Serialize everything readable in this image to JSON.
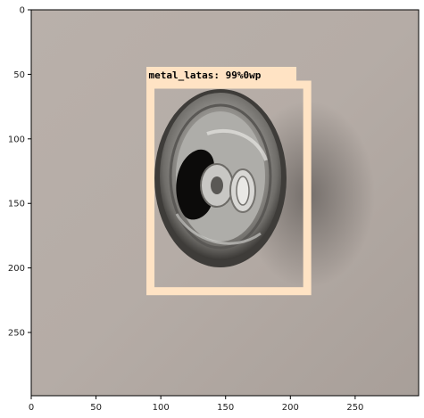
{
  "chart_data": {
    "type": "image",
    "xlim": [
      0,
      299
    ],
    "ylim": [
      299,
      0
    ],
    "x_ticks": [
      0,
      50,
      100,
      150,
      200,
      250
    ],
    "y_ticks": [
      0,
      50,
      100,
      150,
      200,
      250
    ],
    "grid": false,
    "detection": {
      "label": "metal_latas: 99%0wp",
      "box": {
        "xmin": 92,
        "ymin": 58,
        "xmax": 213,
        "ymax": 218
      },
      "color": "#ffe3c4"
    }
  },
  "colors": {
    "background_wall": "#b3aaa4",
    "axis": "#000000",
    "box": "#ffe3c4",
    "can_metal": "#a9a7a3"
  }
}
